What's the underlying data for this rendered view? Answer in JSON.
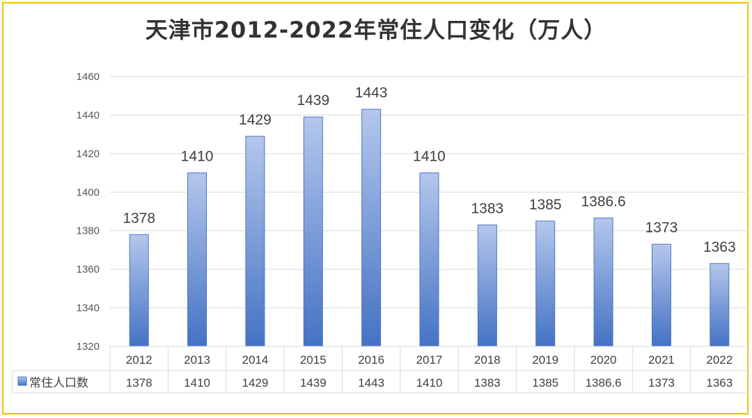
{
  "chart_data": {
    "type": "bar",
    "title": "天津市2012-2022年常住人口变化（万人）",
    "categories": [
      "2012",
      "2013",
      "2014",
      "2015",
      "2016",
      "2017",
      "2018",
      "2019",
      "2020",
      "2021",
      "2022"
    ],
    "series": [
      {
        "name": "常住人口数",
        "values": [
          1378,
          1410,
          1429,
          1439,
          1443,
          1410,
          1383,
          1385,
          1386.6,
          1373,
          1363
        ],
        "labels": [
          "1378",
          "1410",
          "1429",
          "1439",
          "1443",
          "1410",
          "1383",
          "1385",
          "1386.6",
          "1373",
          "1363"
        ]
      }
    ],
    "ylim": [
      1320,
      1460
    ],
    "yticks": [
      1320,
      1340,
      1360,
      1380,
      1400,
      1420,
      1440,
      1460
    ],
    "grid": true,
    "legend": "data-table-left",
    "colors": {
      "bar_top": "#b4c7ec",
      "bar_bottom": "#4472c4",
      "bar_edge": "#4a74c4",
      "grid": "#d9d9d9",
      "frame": "#f2c200"
    }
  }
}
